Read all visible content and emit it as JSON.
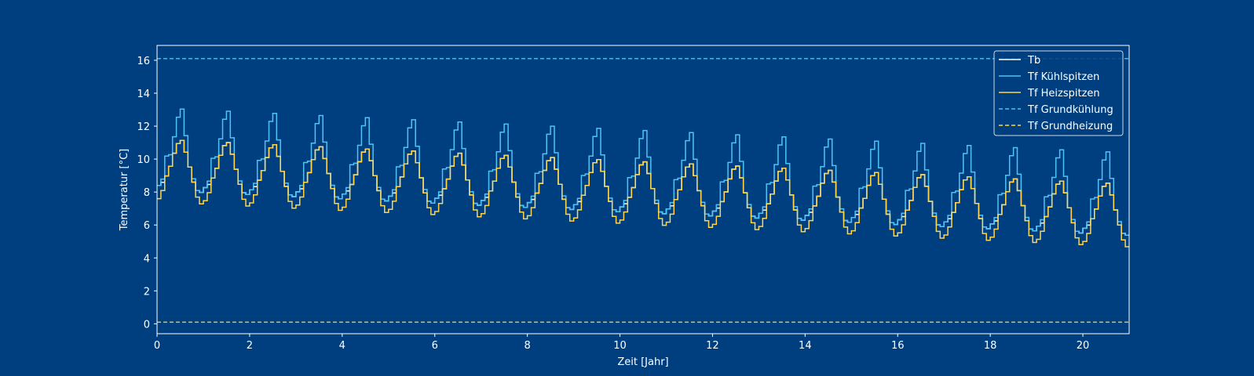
{
  "chart_data": {
    "type": "line",
    "step": true,
    "xlabel": "Zeit [Jahr]",
    "ylabel": "Temperatur [°C]",
    "xlim": [
      0,
      21
    ],
    "ylim": [
      -0.6,
      16.9
    ],
    "xticks": [
      0,
      2,
      4,
      6,
      8,
      10,
      12,
      14,
      16,
      18,
      20
    ],
    "yticks": [
      0,
      2,
      4,
      6,
      8,
      10,
      12,
      14,
      16
    ],
    "grid": false,
    "legend_position": "top-right",
    "months_per_year": 12,
    "monthly_profile_offsets": {
      "base": [
        -0.2,
        0.0,
        0.4,
        1.0,
        1.8,
        2.4,
        2.6,
        1.9,
        1.0,
        0.1,
        -0.4,
        -0.5
      ],
      "heating_peak": [
        -1.0,
        -0.5,
        0.4,
        1.0,
        1.8,
        2.4,
        2.6,
        1.9,
        1.0,
        0.1,
        -0.8,
        -1.2
      ],
      "cooling_peak": [
        -0.2,
        0.2,
        1.6,
        1.7,
        2.8,
        4.0,
        4.5,
        2.9,
        1.0,
        0.3,
        -0.4,
        -0.5
      ]
    },
    "yearly_mean": {
      "start": 8.6,
      "slope_per_year": -0.13,
      "min_slope_per_year": -0.12
    },
    "series": [
      {
        "name": "Tb",
        "color": "#ffffff",
        "style": "solid"
      },
      {
        "name": "Tf Kühlspitzen",
        "color": "#4fc3f7",
        "style": "solid"
      },
      {
        "name": "Tf Heizspitzen",
        "color": "#ffd54f",
        "style": "solid"
      },
      {
        "name": "Tf Grundkühlung",
        "color": "#4fc3f7",
        "style": "dashed",
        "constant": 16.1
      },
      {
        "name": "Tf Grundheizung",
        "color": "#ffd54f",
        "style": "dashed",
        "constant": 0.1
      }
    ],
    "annual_ranges": [
      {
        "year": 0,
        "min": 7.6,
        "max": 13.1
      },
      {
        "year": 20,
        "min": 4.9,
        "max": 10.6
      }
    ]
  },
  "colors": {
    "background": "#003f7f",
    "axis": "#ffffff"
  }
}
